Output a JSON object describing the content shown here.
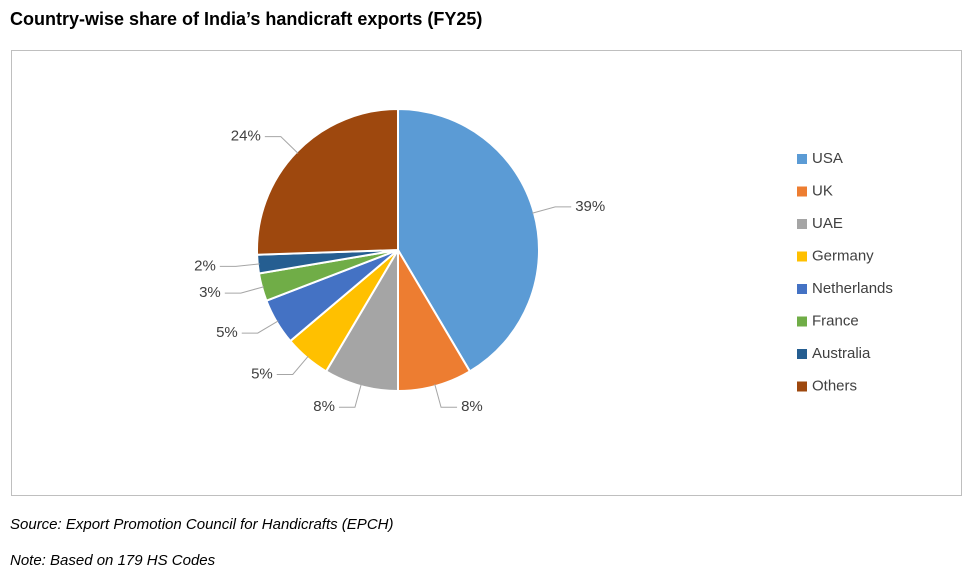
{
  "chart_data": {
    "type": "pie",
    "title": "Country-wise share of India’s handicraft exports (FY25)",
    "categories": [
      "USA",
      "UK",
      "UAE",
      "Germany",
      "Netherlands",
      "France",
      "Australia",
      "Others"
    ],
    "values": [
      39,
      8,
      8,
      5,
      5,
      3,
      2,
      24
    ],
    "value_labels": [
      "39%",
      "8%",
      "8%",
      "5%",
      "5%",
      "3%",
      "2%",
      "24%"
    ],
    "colors": [
      "#5b9bd5",
      "#ed7d31",
      "#a5a5a5",
      "#ffc000",
      "#4472c4",
      "#70ad47",
      "#255e91",
      "#9e480e"
    ],
    "legend": "right",
    "source": "Source: Export Promotion Council for Handicrafts (EPCH)",
    "note": "Note: Based on 179 HS Codes"
  }
}
